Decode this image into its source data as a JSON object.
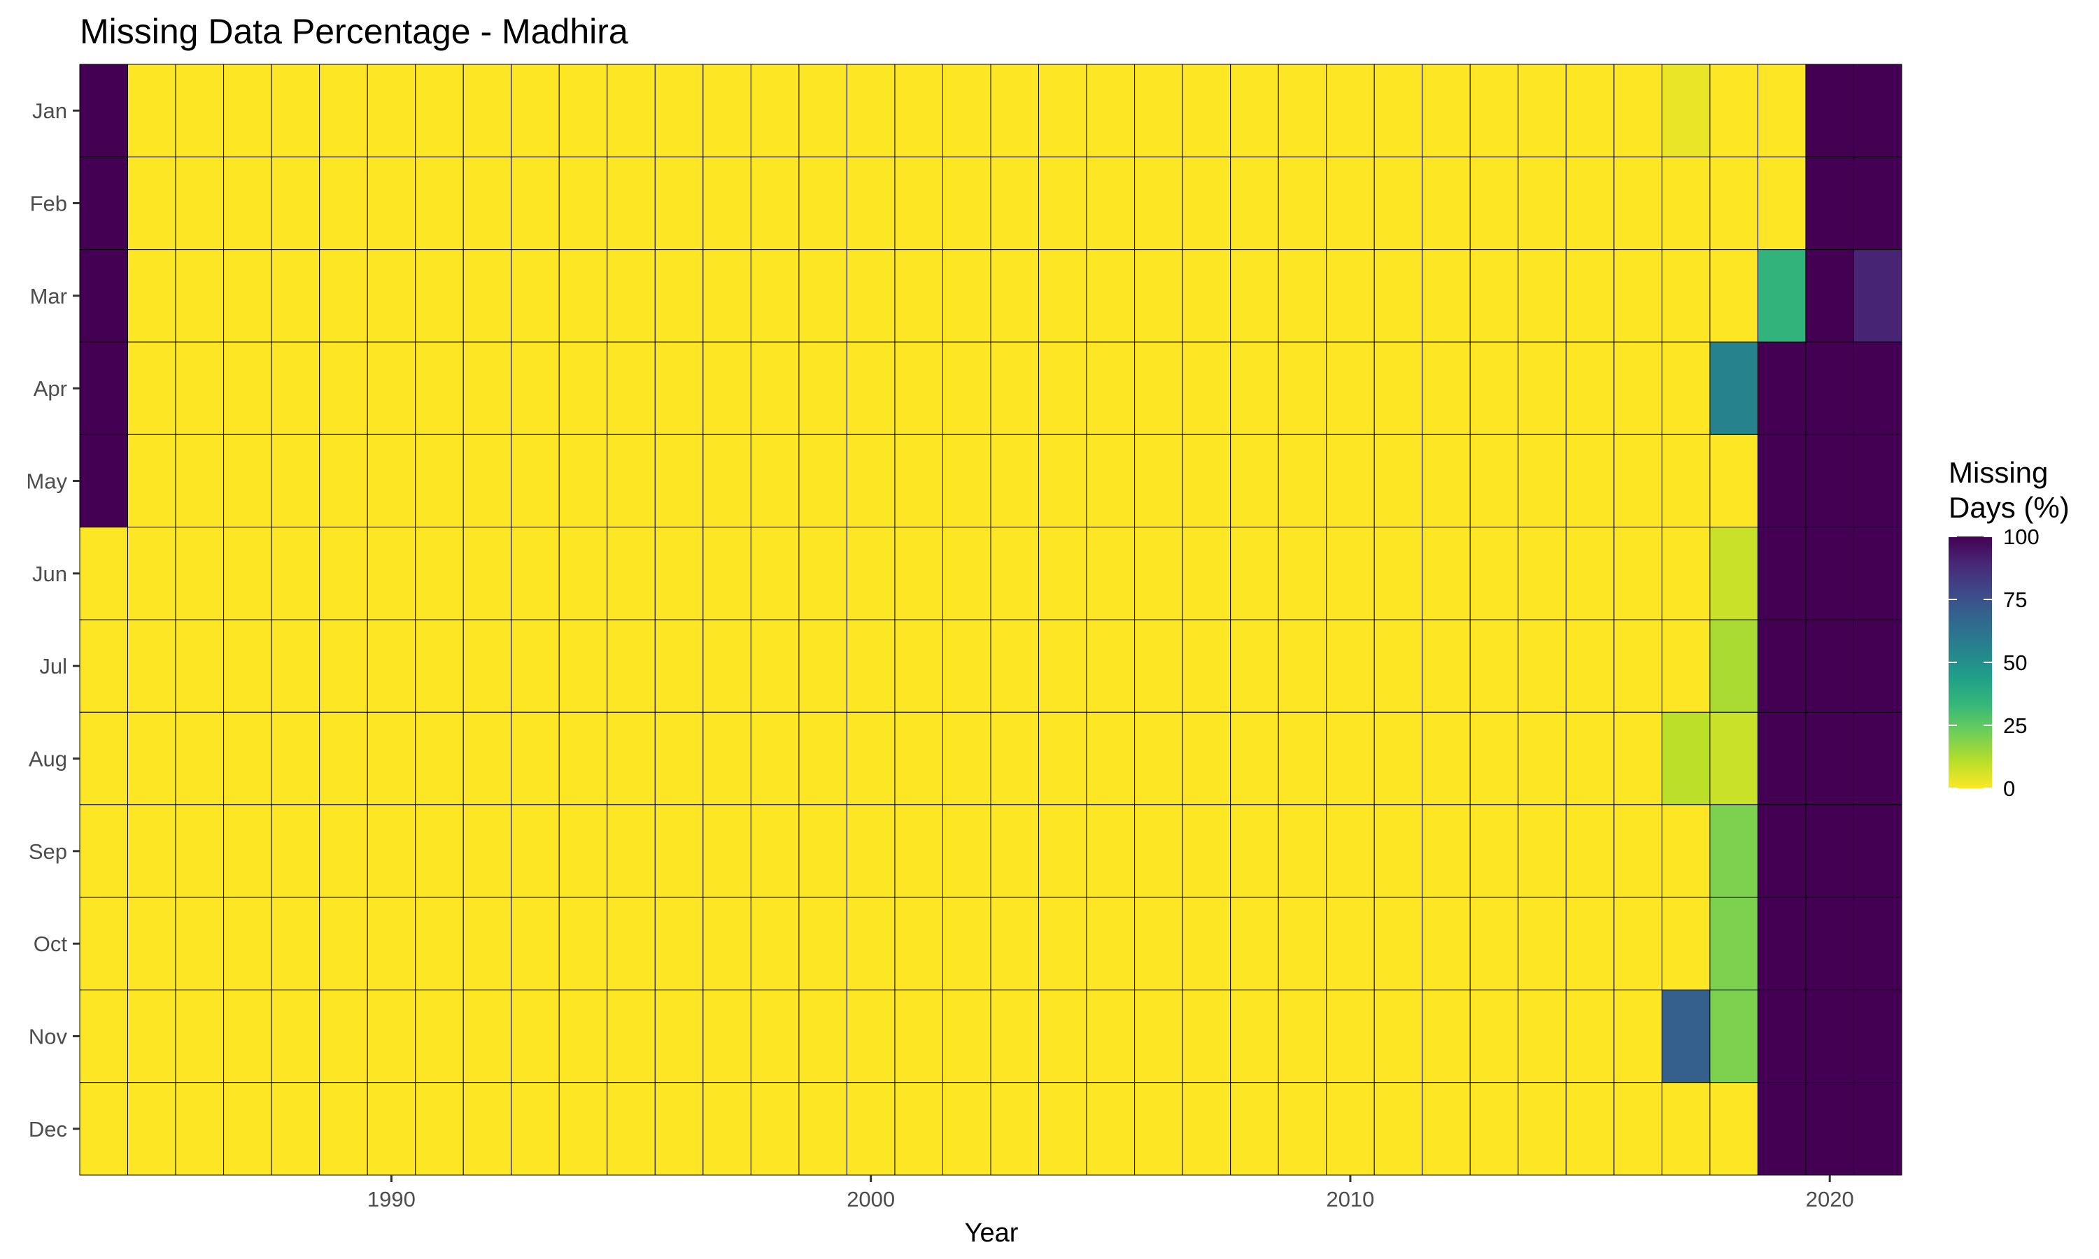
{
  "chart_data": {
    "type": "heatmap",
    "title": "Missing Data Percentage - Madhira",
    "xlabel": "Year",
    "ylabel": "",
    "x_ticks": [
      1990,
      2000,
      2010,
      2020
    ],
    "years": [
      1984,
      1985,
      1986,
      1987,
      1988,
      1989,
      1990,
      1991,
      1992,
      1993,
      1994,
      1995,
      1996,
      1997,
      1998,
      1999,
      2000,
      2001,
      2002,
      2003,
      2004,
      2005,
      2006,
      2007,
      2008,
      2009,
      2010,
      2011,
      2012,
      2013,
      2014,
      2015,
      2016,
      2017,
      2018,
      2019,
      2020,
      2021
    ],
    "months": [
      "Jan",
      "Feb",
      "Mar",
      "Apr",
      "May",
      "Jun",
      "Jul",
      "Aug",
      "Sep",
      "Oct",
      "Nov",
      "Dec"
    ],
    "default_value": 0,
    "cells": [
      {
        "year": 1984,
        "month": "Jan",
        "value": 100
      },
      {
        "year": 1984,
        "month": "Feb",
        "value": 100
      },
      {
        "year": 1984,
        "month": "Mar",
        "value": 100
      },
      {
        "year": 1984,
        "month": "Apr",
        "value": 100
      },
      {
        "year": 1984,
        "month": "May",
        "value": 100
      },
      {
        "year": 2017,
        "month": "Jan",
        "value": 3
      },
      {
        "year": 2017,
        "month": "Aug",
        "value": 10
      },
      {
        "year": 2017,
        "month": "Nov",
        "value": 70
      },
      {
        "year": 2018,
        "month": "Apr",
        "value": 55
      },
      {
        "year": 2018,
        "month": "Jun",
        "value": 8
      },
      {
        "year": 2018,
        "month": "Jul",
        "value": 13
      },
      {
        "year": 2018,
        "month": "Aug",
        "value": 8
      },
      {
        "year": 2018,
        "month": "Sep",
        "value": 20
      },
      {
        "year": 2018,
        "month": "Oct",
        "value": 20
      },
      {
        "year": 2018,
        "month": "Nov",
        "value": 20
      },
      {
        "year": 2019,
        "month": "Mar",
        "value": 35
      },
      {
        "year": 2019,
        "month": "Apr",
        "value": 100
      },
      {
        "year": 2019,
        "month": "May",
        "value": 100
      },
      {
        "year": 2019,
        "month": "Jun",
        "value": 100
      },
      {
        "year": 2019,
        "month": "Jul",
        "value": 100
      },
      {
        "year": 2019,
        "month": "Aug",
        "value": 100
      },
      {
        "year": 2019,
        "month": "Sep",
        "value": 100
      },
      {
        "year": 2019,
        "month": "Oct",
        "value": 100
      },
      {
        "year": 2019,
        "month": "Nov",
        "value": 100
      },
      {
        "year": 2019,
        "month": "Dec",
        "value": 100
      },
      {
        "year": 2020,
        "month": "Jan",
        "value": 100
      },
      {
        "year": 2020,
        "month": "Feb",
        "value": 100
      },
      {
        "year": 2020,
        "month": "Mar",
        "value": 100
      },
      {
        "year": 2020,
        "month": "Apr",
        "value": 100
      },
      {
        "year": 2020,
        "month": "May",
        "value": 100
      },
      {
        "year": 2020,
        "month": "Jun",
        "value": 100
      },
      {
        "year": 2020,
        "month": "Jul",
        "value": 100
      },
      {
        "year": 2020,
        "month": "Aug",
        "value": 100
      },
      {
        "year": 2020,
        "month": "Sep",
        "value": 100
      },
      {
        "year": 2020,
        "month": "Oct",
        "value": 100
      },
      {
        "year": 2020,
        "month": "Nov",
        "value": 100
      },
      {
        "year": 2020,
        "month": "Dec",
        "value": 100
      },
      {
        "year": 2021,
        "month": "Jan",
        "value": 100
      },
      {
        "year": 2021,
        "month": "Feb",
        "value": 100
      },
      {
        "year": 2021,
        "month": "Mar",
        "value": 90
      },
      {
        "year": 2021,
        "month": "Apr",
        "value": 100
      },
      {
        "year": 2021,
        "month": "May",
        "value": 100
      },
      {
        "year": 2021,
        "month": "Jun",
        "value": 100
      },
      {
        "year": 2021,
        "month": "Jul",
        "value": 100
      },
      {
        "year": 2021,
        "month": "Aug",
        "value": 100
      },
      {
        "year": 2021,
        "month": "Sep",
        "value": 100
      },
      {
        "year": 2021,
        "month": "Oct",
        "value": 100
      },
      {
        "year": 2021,
        "month": "Nov",
        "value": 100
      },
      {
        "year": 2021,
        "month": "Dec",
        "value": 100
      }
    ],
    "color_scale": {
      "name": "viridis",
      "reversed": true,
      "domain": [
        0,
        100
      ],
      "stops": [
        "#FDE725",
        "#B5DE2B",
        "#6ECE58",
        "#35B779",
        "#1F9E89",
        "#26828E",
        "#31688E",
        "#3E4989",
        "#482878",
        "#440154"
      ]
    },
    "legend": {
      "title_line1": "Missing",
      "title_line2": "Days (%)",
      "ticks": [
        0,
        25,
        50,
        75,
        100
      ],
      "position": "right"
    },
    "grid": false,
    "tile_border_color": "#000000"
  }
}
